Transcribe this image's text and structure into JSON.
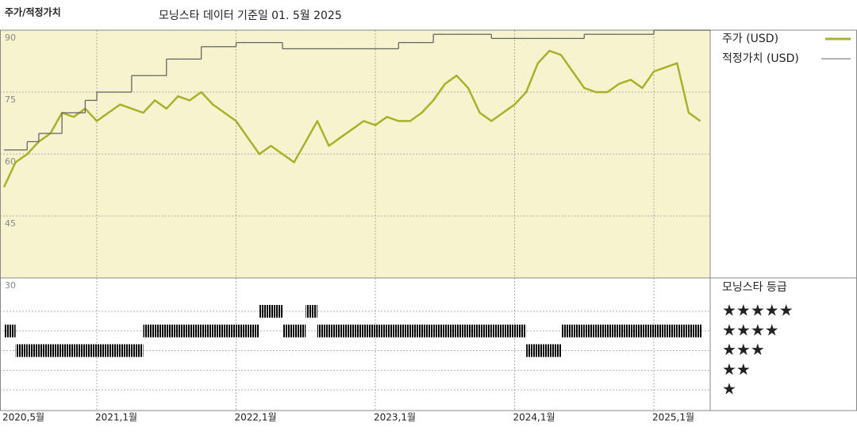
{
  "chart_data": {
    "type": "line",
    "title": "주가/적정가치",
    "subtitle": "모닝스타 데이터 기준일 01. 5월 2025",
    "x": [
      "2020-05",
      "2020-06",
      "2020-07",
      "2020-08",
      "2020-09",
      "2020-10",
      "2020-11",
      "2020-12",
      "2021-01",
      "2021-02",
      "2021-03",
      "2021-04",
      "2021-05",
      "2021-06",
      "2021-07",
      "2021-08",
      "2021-09",
      "2021-10",
      "2021-11",
      "2021-12",
      "2022-01",
      "2022-02",
      "2022-03",
      "2022-04",
      "2022-05",
      "2022-06",
      "2022-07",
      "2022-08",
      "2022-09",
      "2022-10",
      "2022-11",
      "2022-12",
      "2023-01",
      "2023-02",
      "2023-03",
      "2023-04",
      "2023-05",
      "2023-06",
      "2023-07",
      "2023-08",
      "2023-09",
      "2023-10",
      "2023-11",
      "2023-12",
      "2024-01",
      "2024-02",
      "2024-03",
      "2024-04",
      "2024-05",
      "2024-06",
      "2024-07",
      "2024-08",
      "2024-09",
      "2024-10",
      "2024-11",
      "2024-12",
      "2025-01",
      "2025-02",
      "2025-03",
      "2025-04",
      "2025-05"
    ],
    "series": [
      {
        "name": "주가 (USD)",
        "color": "#a9b12a",
        "values": [
          52,
          58,
          60,
          63,
          65,
          70,
          69,
          71,
          68,
          70,
          72,
          71,
          70,
          73,
          71,
          74,
          73,
          75,
          72,
          70,
          68,
          64,
          60,
          62,
          60,
          58,
          63,
          68,
          62,
          64,
          66,
          68,
          67,
          69,
          68,
          68,
          70,
          73,
          77,
          79,
          76,
          70,
          68,
          70,
          72,
          75,
          82,
          85,
          84,
          80,
          76,
          75,
          75,
          77,
          78,
          76,
          80,
          81,
          82,
          70,
          68
        ]
      },
      {
        "name": "적정가치 (USD)",
        "color": "#666666",
        "step": true,
        "values": [
          61,
          61,
          63,
          65,
          65,
          70,
          70,
          73,
          75,
          75,
          75,
          79,
          79,
          79,
          83,
          83,
          83,
          86,
          86,
          86,
          87,
          87,
          87,
          87,
          85.5,
          85.5,
          85.5,
          85.5,
          85.5,
          85.5,
          85.5,
          85.5,
          85.5,
          85.5,
          87,
          87,
          87,
          89,
          89,
          89,
          89,
          89,
          88,
          88,
          88,
          88,
          88,
          88,
          88,
          88,
          89,
          89,
          89,
          89,
          89,
          89,
          90,
          90,
          90,
          90,
          90
        ]
      }
    ],
    "ylim": [
      30,
      90
    ],
    "yticks": [
      30,
      45,
      60,
      75,
      90
    ],
    "xticks": [
      {
        "value": "2020-05",
        "label": "2020,5월"
      },
      {
        "value": "2021-01",
        "label": "2021,1월"
      },
      {
        "value": "2022-01",
        "label": "2022,1월"
      },
      {
        "value": "2023-01",
        "label": "2023,1월"
      },
      {
        "value": "2024-01",
        "label": "2024,1월"
      },
      {
        "value": "2025-01",
        "label": "2025,1월"
      }
    ],
    "grid": true,
    "ratings": {
      "title": "모닝스타 등급",
      "values": [
        4,
        3,
        3,
        3,
        3,
        3,
        3,
        3,
        3,
        3,
        3,
        3,
        4,
        4,
        4,
        4,
        4,
        4,
        4,
        4,
        4,
        4,
        5,
        5,
        4,
        4,
        5,
        4,
        4,
        4,
        4,
        4,
        4,
        4,
        4,
        4,
        4,
        4,
        4,
        4,
        4,
        4,
        4,
        4,
        4,
        3,
        3,
        3,
        4,
        4,
        4,
        4,
        4,
        4,
        4,
        4,
        4,
        4,
        4,
        4,
        4
      ],
      "labels": [
        "★",
        "★★",
        "★★★",
        "★★★★",
        "★★★★★"
      ],
      "colors": {
        "top": "#2e8a66",
        "other": "#333333"
      }
    }
  }
}
